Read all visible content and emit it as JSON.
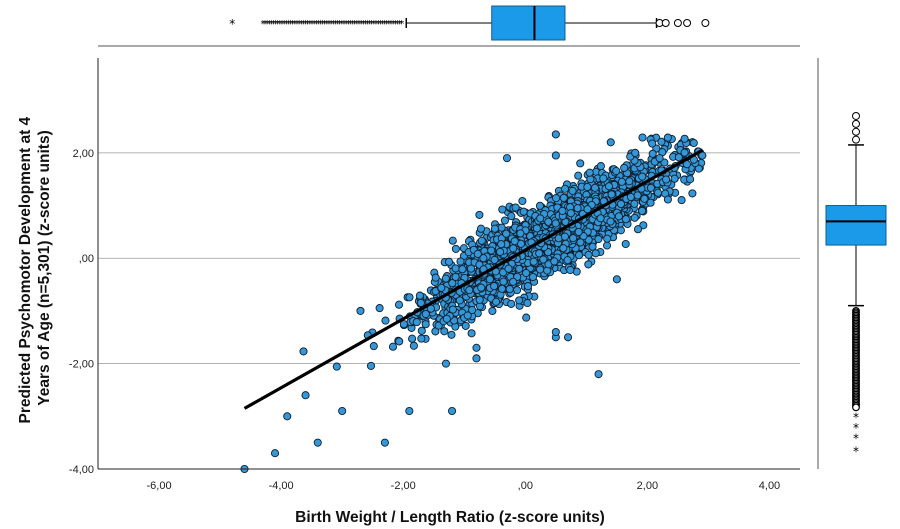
{
  "chart_data": {
    "type": "scatter",
    "title": "",
    "xlabel": "Birth Weight / Length Ratio (z-score units)",
    "ylabel": "Predicted Psychomotor Development at 4 Years of Age (n=5,301) (z-score units)",
    "ylabel_lines": [
      "Predicted Psychomotor Development at 4",
      "Years of Age (n=5,301) (z-score units)"
    ],
    "xlim": [
      -7,
      4.5
    ],
    "ylim": [
      -4,
      3.8
    ],
    "xticks": [
      -6,
      -4,
      -2,
      0,
      2,
      4
    ],
    "xtick_labels": [
      "-6,00",
      "-4,00",
      "-2,00",
      ",00",
      "2,00",
      "4,00"
    ],
    "yticks": [
      -4,
      -2,
      0,
      2
    ],
    "ytick_labels": [
      "-4,00",
      "-2,00",
      ",00",
      "2,00"
    ],
    "grid": "horizontal",
    "colors": {
      "points": "#3597d8",
      "point_edge": "#0d1f2e",
      "box_fill": "#1a9ae8",
      "line": "#000000"
    },
    "n": 5301,
    "fit_line": {
      "x": [
        -4.6,
        2.9
      ],
      "y": [
        -2.85,
        2.05
      ]
    },
    "sample_points": {
      "x": [
        -4.6,
        -4.1,
        -3.9,
        -3.6,
        -3.4,
        -3.0,
        -2.7,
        -2.3,
        -1.9,
        -1.2,
        -0.8,
        -0.3,
        0.1,
        0.5,
        0.9,
        1.4,
        1.8,
        2.2,
        2.7,
        2.9,
        -0.1,
        0.5,
        1.5,
        0.5,
        -0.8,
        -1.3,
        0.5,
        0.7,
        1.2
      ],
      "y": [
        -4.0,
        -3.7,
        -3.0,
        -2.6,
        -3.5,
        -2.9,
        -1.0,
        -3.5,
        -2.9,
        -2.9,
        -1.7,
        1.9,
        0.3,
        2.35,
        1.8,
        2.2,
        2.0,
        1.9,
        1.5,
        1.95,
        -0.8,
        -1.5,
        -0.4,
        1.95,
        -1.9,
        -2.0,
        -1.4,
        -1.5,
        -2.2
      ]
    },
    "x_box": {
      "q1": -0.55,
      "median": 0.15,
      "q3": 0.65,
      "whisker_low": -1.95,
      "whisker_high": 2.15,
      "outliers_low": [
        -4.3,
        -4.1,
        -3.9,
        -3.7,
        -3.5,
        -3.3,
        -3.1,
        -2.9,
        -2.7,
        -2.5,
        -2.3,
        -2.1
      ],
      "extremes_low": [
        -4.8
      ],
      "outliers_high": [
        2.2,
        2.3,
        2.5,
        2.65,
        2.95
      ]
    },
    "y_box": {
      "q1": 0.25,
      "median": 0.7,
      "q3": 1.0,
      "whisker_low": -0.9,
      "whisker_high": 2.15,
      "outliers_low": [
        -1.0,
        -1.2,
        -1.4,
        -1.6,
        -1.8,
        -2.0,
        -2.2,
        -2.4,
        -2.6,
        -2.8
      ],
      "extremes_low": [
        -3.0,
        -3.2,
        -3.4,
        -3.65
      ],
      "outliers_high": [
        2.25,
        2.4,
        2.55,
        2.7
      ]
    }
  }
}
